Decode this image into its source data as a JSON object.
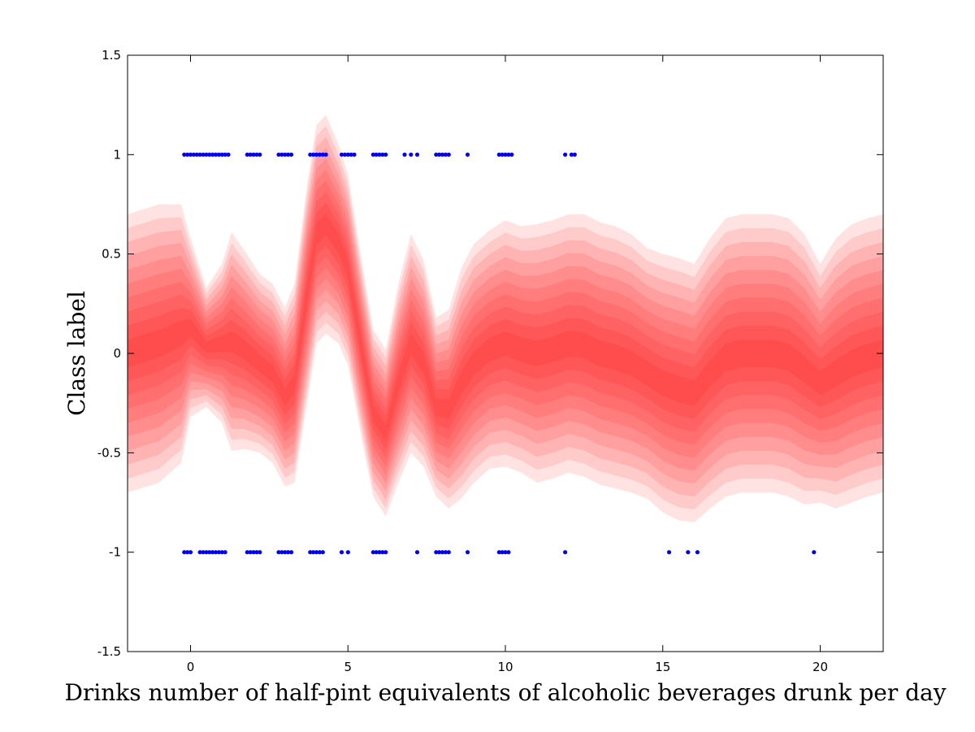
{
  "chart_data": {
    "type": "area",
    "title": "",
    "xlabel": "Drinks number of half-pint equivalents of alcoholic beverages drunk per day",
    "ylabel": "Class label",
    "xlim": [
      -2,
      22
    ],
    "ylim": [
      -1.5,
      1.5
    ],
    "xticks": [
      0,
      5,
      10,
      15,
      20
    ],
    "yticks": [
      -1.5,
      -1,
      -0.5,
      0,
      0.5,
      1,
      1.5
    ],
    "grid": false,
    "legend": "none",
    "colors": {
      "band": "#ff0000",
      "points": "#0000ee"
    },
    "band_levels": 10,
    "mean": {
      "x": [
        -2,
        -1,
        -0.3,
        0,
        0.5,
        1,
        1.3,
        1.7,
        2.2,
        2.6,
        3,
        3.3,
        3.7,
        4,
        4.3,
        4.7,
        5,
        5.4,
        5.8,
        6.2,
        6.6,
        7,
        7.4,
        7.8,
        8.2,
        8.6,
        9,
        9.5,
        10,
        10.5,
        11,
        11.5,
        12,
        12.5,
        13,
        13.5,
        14,
        14.5,
        15,
        15.5,
        16,
        16.5,
        17,
        17.5,
        18,
        18.5,
        19,
        19.5,
        20,
        20.5,
        21,
        21.5,
        22
      ],
      "y": [
        0,
        0.05,
        0.1,
        0.13,
        0.03,
        0.05,
        0.06,
        0.02,
        -0.05,
        -0.1,
        -0.22,
        -0.15,
        0.3,
        0.6,
        0.65,
        0.55,
        0.42,
        0.05,
        -0.3,
        -0.4,
        -0.15,
        0.05,
        -0.05,
        -0.27,
        -0.28,
        -0.15,
        -0.05,
        0.02,
        0.05,
        0.02,
        0.0,
        0.02,
        0.05,
        0.04,
        0.0,
        -0.02,
        -0.05,
        -0.1,
        -0.15,
        -0.18,
        -0.2,
        -0.1,
        -0.02,
        0.0,
        0.0,
        0.0,
        -0.02,
        -0.08,
        -0.15,
        -0.1,
        -0.05,
        -0.02,
        0.0
      ]
    },
    "spread": {
      "x": [
        -2,
        -1,
        -0.3,
        0,
        0.5,
        1,
        1.3,
        1.7,
        2.2,
        2.6,
        3,
        3.3,
        3.7,
        4,
        4.3,
        4.7,
        5,
        5.4,
        5.8,
        6.2,
        6.6,
        7,
        7.4,
        7.8,
        8.2,
        8.6,
        9,
        9.5,
        10,
        10.5,
        11,
        11.5,
        12,
        12.5,
        13,
        13.5,
        14,
        14.5,
        15,
        15.5,
        16,
        16.5,
        17,
        17.5,
        18,
        18.5,
        19,
        19.5,
        20,
        20.5,
        21,
        21.5,
        22
      ],
      "y": [
        0.7,
        0.7,
        0.65,
        0.45,
        0.3,
        0.4,
        0.55,
        0.5,
        0.45,
        0.45,
        0.45,
        0.5,
        0.55,
        0.55,
        0.55,
        0.5,
        0.48,
        0.45,
        0.42,
        0.42,
        0.5,
        0.55,
        0.52,
        0.45,
        0.5,
        0.58,
        0.6,
        0.6,
        0.62,
        0.62,
        0.65,
        0.65,
        0.65,
        0.66,
        0.66,
        0.66,
        0.65,
        0.63,
        0.65,
        0.66,
        0.65,
        0.68,
        0.7,
        0.7,
        0.7,
        0.7,
        0.7,
        0.68,
        0.6,
        0.68,
        0.7,
        0.7,
        0.7
      ]
    },
    "points_class_1": {
      "y": 1,
      "x": [
        -0.2,
        -0.1,
        0,
        0.1,
        0.2,
        0.3,
        0.4,
        0.5,
        0.6,
        0.7,
        0.8,
        0.9,
        1.0,
        1.1,
        1.2,
        1.8,
        1.9,
        2.0,
        2.1,
        2.2,
        2.8,
        2.9,
        3.0,
        3.1,
        3.2,
        3.8,
        3.9,
        4.0,
        4.1,
        4.2,
        4.3,
        4.8,
        4.9,
        5.0,
        5.1,
        5.2,
        5.8,
        5.9,
        6.0,
        6.1,
        6.2,
        6.8,
        7.0,
        7.2,
        7.8,
        7.9,
        8.0,
        8.1,
        8.2,
        8.8,
        9.8,
        9.9,
        10.0,
        10.1,
        10.2,
        11.9,
        12.1,
        12.2
      ]
    },
    "points_class_minus_1": {
      "y": -1,
      "x": [
        -0.2,
        -0.1,
        0,
        0.3,
        0.4,
        0.5,
        0.6,
        0.7,
        0.8,
        0.9,
        1.0,
        1.1,
        1.8,
        1.9,
        2.0,
        2.1,
        2.2,
        2.8,
        2.9,
        3.0,
        3.1,
        3.2,
        3.8,
        3.9,
        4.0,
        4.1,
        4.2,
        4.8,
        5.0,
        5.8,
        5.9,
        6.0,
        6.1,
        6.2,
        7.2,
        7.8,
        7.9,
        8.0,
        8.1,
        8.2,
        8.8,
        9.8,
        9.9,
        10.0,
        10.1,
        11.9,
        15.2,
        15.8,
        16.1,
        19.8
      ]
    }
  }
}
